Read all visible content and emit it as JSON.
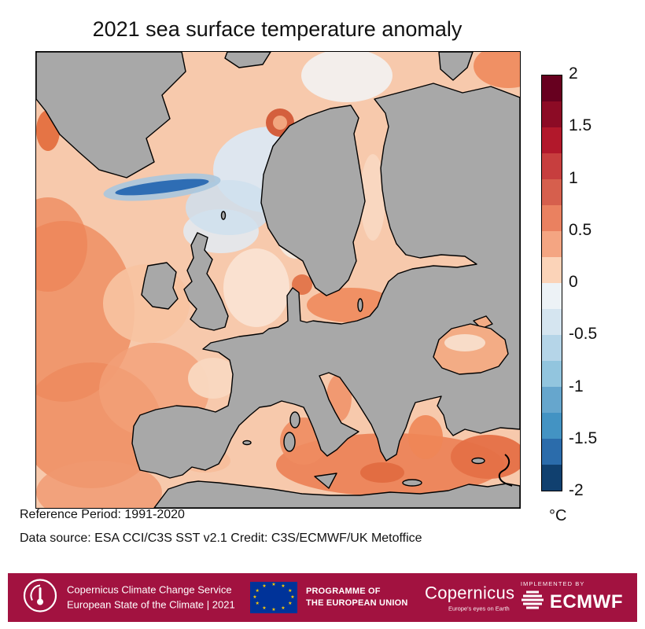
{
  "title": "2021 sea surface temperature anomaly",
  "palette": {
    "land": "#a8a8a8",
    "coastline": "#000000",
    "sea_base": "#f7c9ac",
    "cold_streak": "#2e6db4",
    "warm_strong": "#ee8a5c",
    "footer_bg": "#a21240",
    "eu_flag_blue": "#003399",
    "eu_star_yellow": "#ffcc00"
  },
  "colorbar": {
    "unit": "°C",
    "min": -2,
    "max": 2,
    "ticks": [
      "2",
      "1.5",
      "1",
      "0.5",
      "0",
      "-0.5",
      "-1",
      "-1.5",
      "-2"
    ],
    "tick_values": [
      2,
      1.5,
      1,
      0.5,
      0,
      -0.5,
      -1,
      -1.5,
      -2
    ],
    "segment_colors": [
      "#67001f",
      "#8c0b25",
      "#b2182b",
      "#c73e3e",
      "#d65f4d",
      "#ea8160",
      "#f4a582",
      "#fbd3b8",
      "#edf2f6",
      "#d5e5f0",
      "#b5d5e8",
      "#92c5de",
      "#66a6cd",
      "#4393c3",
      "#2b6cab",
      "#10406f"
    ]
  },
  "notes": {
    "reference_period": "Reference Period: 1991-2020",
    "data_source": "Data source: ESA CCI/C3S SST v2.1 Credit: C3S/ECMWF/UK Metoffice"
  },
  "footer": {
    "c3s_line1": "Copernicus Climate Change Service",
    "c3s_line2": "European State of the Climate | 2021",
    "eu_line1": "PROGRAMME OF",
    "eu_line2": "THE EUROPEAN UNION",
    "eu_star_glyph": "★",
    "copernicus_name": "Copernicus",
    "copernicus_tagline": "Europe's eyes on Earth",
    "implemented_by": "IMPLEMENTED BY",
    "ecmwf": "ECMWF"
  }
}
